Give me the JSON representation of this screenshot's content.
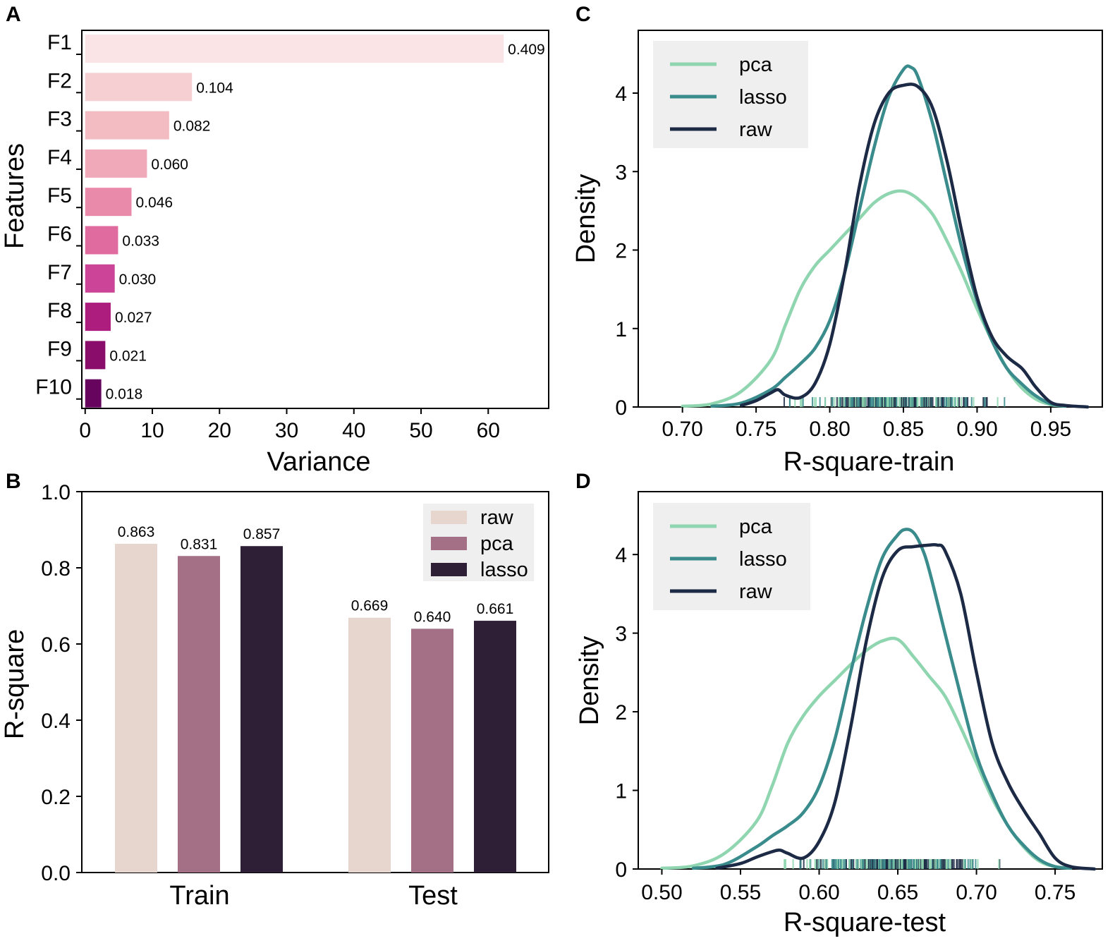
{
  "chart_data": [
    {
      "panel": "A",
      "type": "bar",
      "orientation": "horizontal",
      "categories": [
        "F1",
        "F2",
        "F3",
        "F4",
        "F5",
        "F6",
        "F7",
        "F8",
        "F9",
        "F10"
      ],
      "values": [
        62.3,
        15.9,
        12.5,
        9.2,
        6.9,
        4.9,
        4.4,
        3.8,
        3.0,
        2.4
      ],
      "data_labels": [
        "0.409",
        "0.104",
        "0.082",
        "0.060",
        "0.046",
        "0.033",
        "0.030",
        "0.027",
        "0.021",
        "0.018"
      ],
      "colors": [
        "#fbe4e6",
        "#f6cfd3",
        "#f3bcc3",
        "#f0a9b8",
        "#e98aaa",
        "#e06c9f",
        "#cb4497",
        "#ac1d7e",
        "#8a0d6c",
        "#66045e"
      ],
      "xlabel": "Variance",
      "ylabel": "Features",
      "xlim": [
        -0.5,
        69
      ],
      "xticks": [
        "0",
        "10",
        "20",
        "30",
        "40",
        "50",
        "60"
      ]
    },
    {
      "panel": "B",
      "type": "bar",
      "categories": [
        "Train",
        "Test"
      ],
      "series": [
        {
          "name": "raw",
          "color": "#e6d6cd",
          "values": [
            0.863,
            0.669
          ],
          "labels": [
            "0.863",
            "0.669"
          ]
        },
        {
          "name": "pca",
          "color": "#a47085",
          "values": [
            0.831,
            0.64
          ],
          "labels": [
            "0.831",
            "0.640"
          ]
        },
        {
          "name": "lasso",
          "color": "#2e1f36",
          "values": [
            0.857,
            0.661
          ],
          "labels": [
            "0.857",
            "0.661"
          ]
        }
      ],
      "xlabel": "",
      "ylabel": "R-square",
      "ylim": [
        0,
        1.0
      ],
      "yticks": [
        "0.0",
        "0.2",
        "0.4",
        "0.6",
        "0.8",
        "1.0"
      ],
      "legend_position": "top-right"
    },
    {
      "panel": "C",
      "type": "line",
      "kind": "kde",
      "xlabel": "R-square-train",
      "ylabel": "Density",
      "xlim": [
        0.67,
        0.985
      ],
      "ylim": [
        0,
        4.8
      ],
      "xticks": [
        "0.70",
        "0.75",
        "0.80",
        "0.85",
        "0.90",
        "0.95"
      ],
      "yticks": [
        "0",
        "1",
        "2",
        "3",
        "4"
      ],
      "legend_position": "top-left",
      "series": [
        {
          "name": "pca",
          "color": "#8fd6b0",
          "x": [
            0.7,
            0.72,
            0.74,
            0.76,
            0.77,
            0.78,
            0.79,
            0.8,
            0.81,
            0.82,
            0.83,
            0.84,
            0.85,
            0.86,
            0.87,
            0.88,
            0.89,
            0.9,
            0.91,
            0.92,
            0.93,
            0.94,
            0.95,
            0.96
          ],
          "y": [
            0.01,
            0.04,
            0.2,
            0.6,
            1.05,
            1.5,
            1.8,
            2.0,
            2.2,
            2.4,
            2.6,
            2.72,
            2.75,
            2.65,
            2.45,
            2.1,
            1.7,
            1.25,
            0.85,
            0.5,
            0.25,
            0.1,
            0.03,
            0.01
          ]
        },
        {
          "name": "lasso",
          "color": "#3a8b8c",
          "x": [
            0.72,
            0.74,
            0.76,
            0.77,
            0.78,
            0.79,
            0.8,
            0.81,
            0.82,
            0.83,
            0.84,
            0.85,
            0.855,
            0.86,
            0.87,
            0.88,
            0.89,
            0.9,
            0.91,
            0.92,
            0.93,
            0.94,
            0.95,
            0.96
          ],
          "y": [
            0.01,
            0.05,
            0.22,
            0.38,
            0.55,
            0.75,
            1.1,
            1.7,
            2.5,
            3.3,
            3.95,
            4.3,
            4.33,
            4.2,
            3.6,
            2.8,
            2.0,
            1.35,
            0.85,
            0.5,
            0.3,
            0.14,
            0.04,
            0.01
          ]
        },
        {
          "name": "raw",
          "color": "#1c2a45",
          "x": [
            0.74,
            0.75,
            0.76,
            0.765,
            0.77,
            0.78,
            0.79,
            0.8,
            0.81,
            0.82,
            0.83,
            0.84,
            0.85,
            0.86,
            0.87,
            0.88,
            0.89,
            0.9,
            0.91,
            0.92,
            0.93,
            0.935,
            0.94,
            0.95,
            0.96,
            0.975
          ],
          "y": [
            0.02,
            0.08,
            0.18,
            0.22,
            0.15,
            0.12,
            0.3,
            0.8,
            1.7,
            2.8,
            3.6,
            4.0,
            4.1,
            4.08,
            3.8,
            3.1,
            2.2,
            1.4,
            0.9,
            0.65,
            0.5,
            0.38,
            0.25,
            0.06,
            0.02,
            0.0
          ]
        }
      ]
    },
    {
      "panel": "D",
      "type": "line",
      "kind": "kde",
      "xlabel": "R-square-test",
      "ylabel": "Density",
      "xlim": [
        0.485,
        0.78
      ],
      "ylim": [
        0,
        4.8
      ],
      "xticks": [
        "0.50",
        "0.55",
        "0.60",
        "0.65",
        "0.70",
        "0.75"
      ],
      "yticks": [
        "0",
        "1",
        "2",
        "3",
        "4"
      ],
      "legend_position": "top-left",
      "series": [
        {
          "name": "pca",
          "color": "#8fd6b0",
          "x": [
            0.5,
            0.52,
            0.54,
            0.56,
            0.57,
            0.58,
            0.59,
            0.6,
            0.61,
            0.62,
            0.63,
            0.64,
            0.65,
            0.66,
            0.67,
            0.68,
            0.69,
            0.7,
            0.71,
            0.72,
            0.73,
            0.74,
            0.75,
            0.76
          ],
          "y": [
            0.01,
            0.04,
            0.2,
            0.6,
            1.05,
            1.6,
            1.95,
            2.2,
            2.4,
            2.6,
            2.78,
            2.9,
            2.92,
            2.7,
            2.45,
            2.2,
            1.8,
            1.35,
            0.9,
            0.55,
            0.28,
            0.1,
            0.03,
            0.01
          ]
        },
        {
          "name": "lasso",
          "color": "#3a8b8c",
          "x": [
            0.52,
            0.54,
            0.56,
            0.57,
            0.58,
            0.59,
            0.6,
            0.61,
            0.62,
            0.63,
            0.64,
            0.65,
            0.655,
            0.66,
            0.665,
            0.67,
            0.68,
            0.69,
            0.7,
            0.71,
            0.72,
            0.73,
            0.74,
            0.75,
            0.76
          ],
          "y": [
            0.01,
            0.06,
            0.28,
            0.42,
            0.55,
            0.72,
            1.05,
            1.65,
            2.5,
            3.3,
            3.95,
            4.25,
            4.32,
            4.28,
            4.1,
            3.8,
            3.0,
            2.2,
            1.45,
            0.95,
            0.55,
            0.3,
            0.12,
            0.03,
            0.01
          ]
        },
        {
          "name": "raw",
          "color": "#1c2a45",
          "x": [
            0.535,
            0.55,
            0.56,
            0.57,
            0.575,
            0.58,
            0.59,
            0.6,
            0.61,
            0.62,
            0.63,
            0.64,
            0.65,
            0.66,
            0.67,
            0.675,
            0.68,
            0.69,
            0.7,
            0.71,
            0.72,
            0.73,
            0.74,
            0.75,
            0.76,
            0.775
          ],
          "y": [
            0.01,
            0.07,
            0.15,
            0.22,
            0.24,
            0.2,
            0.14,
            0.35,
            0.85,
            1.8,
            2.9,
            3.7,
            4.05,
            4.1,
            4.12,
            4.12,
            4.05,
            3.5,
            2.5,
            1.6,
            1.1,
            0.75,
            0.45,
            0.14,
            0.03,
            0.0
          ]
        }
      ]
    }
  ]
}
